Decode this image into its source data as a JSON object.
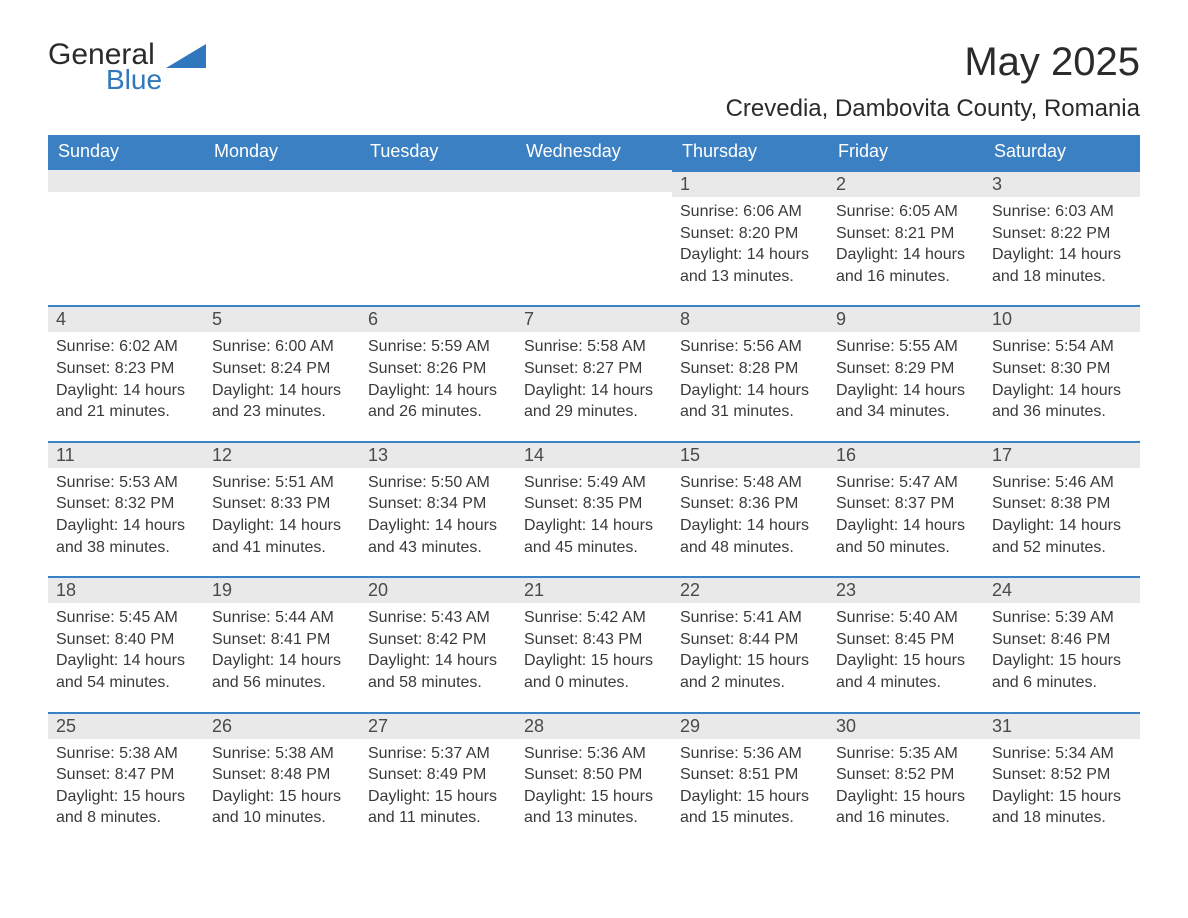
{
  "brand": {
    "word1": "General",
    "word2": "Blue"
  },
  "title": "May 2025",
  "location": "Crevedia, Dambovita County, Romania",
  "colors": {
    "header_bg": "#3a80c2",
    "header_text": "#ffffff",
    "row_divider": "#3a80c2",
    "daynum_bg": "#e9e9e9",
    "text": "#3a3a3a",
    "page_bg": "#ffffff",
    "brand_blue": "#2f78bd"
  },
  "day_headers": [
    "Sunday",
    "Monday",
    "Tuesday",
    "Wednesday",
    "Thursday",
    "Friday",
    "Saturday"
  ],
  "weeks": [
    [
      {
        "day": "",
        "sunrise": "",
        "sunset": "",
        "daylight": ""
      },
      {
        "day": "",
        "sunrise": "",
        "sunset": "",
        "daylight": ""
      },
      {
        "day": "",
        "sunrise": "",
        "sunset": "",
        "daylight": ""
      },
      {
        "day": "",
        "sunrise": "",
        "sunset": "",
        "daylight": ""
      },
      {
        "day": "1",
        "sunrise": "Sunrise: 6:06 AM",
        "sunset": "Sunset: 8:20 PM",
        "daylight": "Daylight: 14 hours and 13 minutes."
      },
      {
        "day": "2",
        "sunrise": "Sunrise: 6:05 AM",
        "sunset": "Sunset: 8:21 PM",
        "daylight": "Daylight: 14 hours and 16 minutes."
      },
      {
        "day": "3",
        "sunrise": "Sunrise: 6:03 AM",
        "sunset": "Sunset: 8:22 PM",
        "daylight": "Daylight: 14 hours and 18 minutes."
      }
    ],
    [
      {
        "day": "4",
        "sunrise": "Sunrise: 6:02 AM",
        "sunset": "Sunset: 8:23 PM",
        "daylight": "Daylight: 14 hours and 21 minutes."
      },
      {
        "day": "5",
        "sunrise": "Sunrise: 6:00 AM",
        "sunset": "Sunset: 8:24 PM",
        "daylight": "Daylight: 14 hours and 23 minutes."
      },
      {
        "day": "6",
        "sunrise": "Sunrise: 5:59 AM",
        "sunset": "Sunset: 8:26 PM",
        "daylight": "Daylight: 14 hours and 26 minutes."
      },
      {
        "day": "7",
        "sunrise": "Sunrise: 5:58 AM",
        "sunset": "Sunset: 8:27 PM",
        "daylight": "Daylight: 14 hours and 29 minutes."
      },
      {
        "day": "8",
        "sunrise": "Sunrise: 5:56 AM",
        "sunset": "Sunset: 8:28 PM",
        "daylight": "Daylight: 14 hours and 31 minutes."
      },
      {
        "day": "9",
        "sunrise": "Sunrise: 5:55 AM",
        "sunset": "Sunset: 8:29 PM",
        "daylight": "Daylight: 14 hours and 34 minutes."
      },
      {
        "day": "10",
        "sunrise": "Sunrise: 5:54 AM",
        "sunset": "Sunset: 8:30 PM",
        "daylight": "Daylight: 14 hours and 36 minutes."
      }
    ],
    [
      {
        "day": "11",
        "sunrise": "Sunrise: 5:53 AM",
        "sunset": "Sunset: 8:32 PM",
        "daylight": "Daylight: 14 hours and 38 minutes."
      },
      {
        "day": "12",
        "sunrise": "Sunrise: 5:51 AM",
        "sunset": "Sunset: 8:33 PM",
        "daylight": "Daylight: 14 hours and 41 minutes."
      },
      {
        "day": "13",
        "sunrise": "Sunrise: 5:50 AM",
        "sunset": "Sunset: 8:34 PM",
        "daylight": "Daylight: 14 hours and 43 minutes."
      },
      {
        "day": "14",
        "sunrise": "Sunrise: 5:49 AM",
        "sunset": "Sunset: 8:35 PM",
        "daylight": "Daylight: 14 hours and 45 minutes."
      },
      {
        "day": "15",
        "sunrise": "Sunrise: 5:48 AM",
        "sunset": "Sunset: 8:36 PM",
        "daylight": "Daylight: 14 hours and 48 minutes."
      },
      {
        "day": "16",
        "sunrise": "Sunrise: 5:47 AM",
        "sunset": "Sunset: 8:37 PM",
        "daylight": "Daylight: 14 hours and 50 minutes."
      },
      {
        "day": "17",
        "sunrise": "Sunrise: 5:46 AM",
        "sunset": "Sunset: 8:38 PM",
        "daylight": "Daylight: 14 hours and 52 minutes."
      }
    ],
    [
      {
        "day": "18",
        "sunrise": "Sunrise: 5:45 AM",
        "sunset": "Sunset: 8:40 PM",
        "daylight": "Daylight: 14 hours and 54 minutes."
      },
      {
        "day": "19",
        "sunrise": "Sunrise: 5:44 AM",
        "sunset": "Sunset: 8:41 PM",
        "daylight": "Daylight: 14 hours and 56 minutes."
      },
      {
        "day": "20",
        "sunrise": "Sunrise: 5:43 AM",
        "sunset": "Sunset: 8:42 PM",
        "daylight": "Daylight: 14 hours and 58 minutes."
      },
      {
        "day": "21",
        "sunrise": "Sunrise: 5:42 AM",
        "sunset": "Sunset: 8:43 PM",
        "daylight": "Daylight: 15 hours and 0 minutes."
      },
      {
        "day": "22",
        "sunrise": "Sunrise: 5:41 AM",
        "sunset": "Sunset: 8:44 PM",
        "daylight": "Daylight: 15 hours and 2 minutes."
      },
      {
        "day": "23",
        "sunrise": "Sunrise: 5:40 AM",
        "sunset": "Sunset: 8:45 PM",
        "daylight": "Daylight: 15 hours and 4 minutes."
      },
      {
        "day": "24",
        "sunrise": "Sunrise: 5:39 AM",
        "sunset": "Sunset: 8:46 PM",
        "daylight": "Daylight: 15 hours and 6 minutes."
      }
    ],
    [
      {
        "day": "25",
        "sunrise": "Sunrise: 5:38 AM",
        "sunset": "Sunset: 8:47 PM",
        "daylight": "Daylight: 15 hours and 8 minutes."
      },
      {
        "day": "26",
        "sunrise": "Sunrise: 5:38 AM",
        "sunset": "Sunset: 8:48 PM",
        "daylight": "Daylight: 15 hours and 10 minutes."
      },
      {
        "day": "27",
        "sunrise": "Sunrise: 5:37 AM",
        "sunset": "Sunset: 8:49 PM",
        "daylight": "Daylight: 15 hours and 11 minutes."
      },
      {
        "day": "28",
        "sunrise": "Sunrise: 5:36 AM",
        "sunset": "Sunset: 8:50 PM",
        "daylight": "Daylight: 15 hours and 13 minutes."
      },
      {
        "day": "29",
        "sunrise": "Sunrise: 5:36 AM",
        "sunset": "Sunset: 8:51 PM",
        "daylight": "Daylight: 15 hours and 15 minutes."
      },
      {
        "day": "30",
        "sunrise": "Sunrise: 5:35 AM",
        "sunset": "Sunset: 8:52 PM",
        "daylight": "Daylight: 15 hours and 16 minutes."
      },
      {
        "day": "31",
        "sunrise": "Sunrise: 5:34 AM",
        "sunset": "Sunset: 8:52 PM",
        "daylight": "Daylight: 15 hours and 18 minutes."
      }
    ]
  ]
}
